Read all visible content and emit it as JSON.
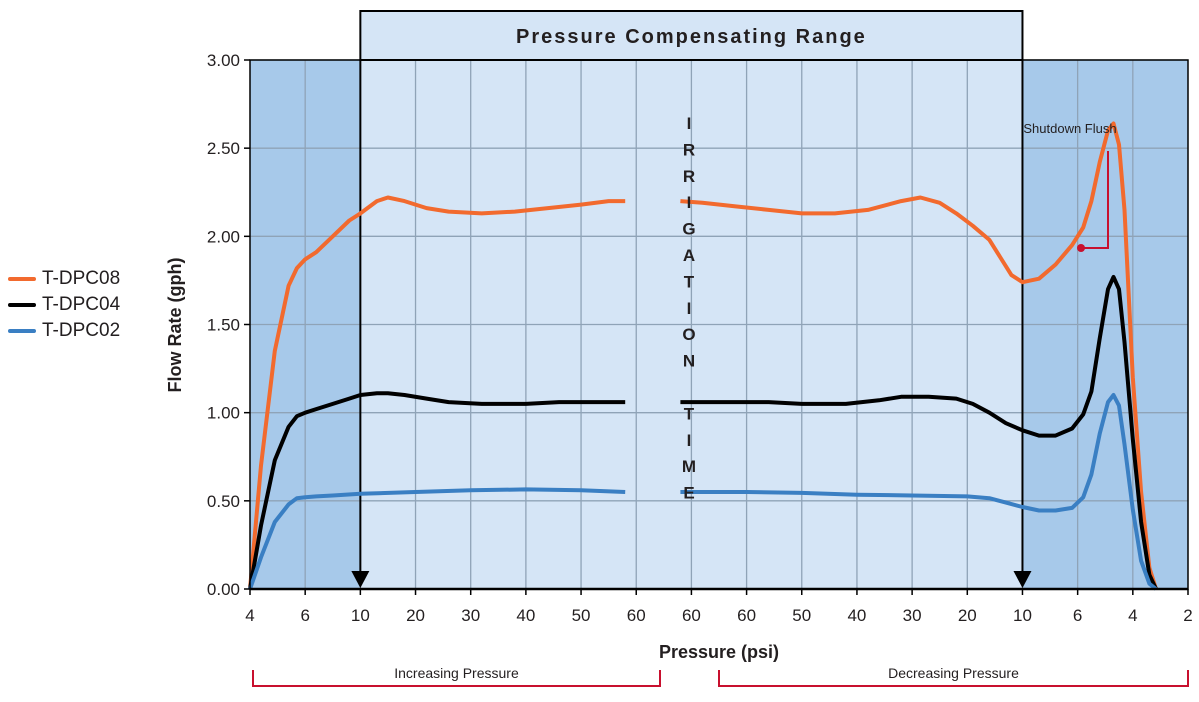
{
  "chart_data": {
    "type": "line",
    "title": "",
    "xlabel": "Pressure (psi)",
    "ylabel": "Flow Rate (gph)",
    "ylim": [
      0,
      3
    ],
    "y_ticks": [
      "0.00",
      "0.50",
      "1.00",
      "1.50",
      "2.00",
      "2.50",
      "3.00"
    ],
    "x_ticks": [
      "4",
      "6",
      "10",
      "20",
      "30",
      "40",
      "50",
      "60",
      "60",
      "60",
      "50",
      "40",
      "30",
      "20",
      "10",
      "6",
      "4",
      "2"
    ],
    "grid": true,
    "legend_position": "left",
    "band_label": "Pressure Compensating Range",
    "center_label": [
      "I",
      "R",
      "R",
      "I",
      "G",
      "A",
      "T",
      "I",
      "O",
      "N",
      "",
      "T",
      "I",
      "M",
      "E"
    ],
    "annotation": "Shutdown Flush",
    "bottom_labels": [
      "Increasing Pressure",
      "Decreasing Pressure"
    ],
    "colors": {
      "outer_band": "#a7c9ea",
      "inner_band": "#d5e5f6",
      "grid": "#8fa3b7",
      "annotation": "#c8102e"
    },
    "series": [
      {
        "name": "T-DPC08",
        "color": "#f26a2e",
        "segments": [
          [
            [
              0,
              0
            ],
            [
              0.2,
              0.7
            ],
            [
              0.45,
              1.35
            ],
            [
              0.7,
              1.72
            ],
            [
              0.85,
              1.82
            ],
            [
              1,
              1.87
            ],
            [
              1.2,
              1.91
            ],
            [
              1.5,
              2.0
            ],
            [
              1.8,
              2.09
            ],
            [
              2,
              2.13
            ],
            [
              2.3,
              2.2
            ],
            [
              2.5,
              2.22
            ],
            [
              2.8,
              2.2
            ],
            [
              3.2,
              2.16
            ],
            [
              3.6,
              2.14
            ],
            [
              4.2,
              2.13
            ],
            [
              4.8,
              2.14
            ],
            [
              5.4,
              2.16
            ],
            [
              6,
              2.18
            ],
            [
              6.5,
              2.2
            ],
            [
              6.8,
              2.2
            ]
          ],
          [
            [
              7.8,
              2.2
            ],
            [
              8.2,
              2.19
            ],
            [
              8.8,
              2.17
            ],
            [
              9.4,
              2.15
            ],
            [
              10,
              2.13
            ],
            [
              10.6,
              2.13
            ],
            [
              11.2,
              2.15
            ],
            [
              11.8,
              2.2
            ],
            [
              12.15,
              2.22
            ],
            [
              12.5,
              2.19
            ],
            [
              12.8,
              2.13
            ],
            [
              13.1,
              2.06
            ],
            [
              13.4,
              1.98
            ],
            [
              13.6,
              1.88
            ],
            [
              13.8,
              1.78
            ],
            [
              14,
              1.74
            ],
            [
              14.3,
              1.76
            ],
            [
              14.6,
              1.84
            ],
            [
              14.9,
              1.95
            ],
            [
              15.1,
              2.05
            ],
            [
              15.25,
              2.2
            ],
            [
              15.4,
              2.42
            ],
            [
              15.55,
              2.6
            ],
            [
              15.65,
              2.64
            ],
            [
              15.75,
              2.52
            ],
            [
              15.85,
              2.15
            ],
            [
              16,
              1.2
            ],
            [
              16.15,
              0.55
            ],
            [
              16.3,
              0.12
            ],
            [
              16.42,
              0
            ]
          ]
        ]
      },
      {
        "name": "T-DPC04",
        "color": "#000000",
        "segments": [
          [
            [
              0,
              0
            ],
            [
              0.2,
              0.36
            ],
            [
              0.45,
              0.73
            ],
            [
              0.7,
              0.92
            ],
            [
              0.85,
              0.98
            ],
            [
              1,
              1.0
            ],
            [
              1.2,
              1.02
            ],
            [
              1.5,
              1.05
            ],
            [
              1.8,
              1.08
            ],
            [
              2,
              1.1
            ],
            [
              2.3,
              1.11
            ],
            [
              2.5,
              1.11
            ],
            [
              2.8,
              1.1
            ],
            [
              3.2,
              1.08
            ],
            [
              3.6,
              1.06
            ],
            [
              4.2,
              1.05
            ],
            [
              5,
              1.05
            ],
            [
              5.6,
              1.06
            ],
            [
              6.2,
              1.06
            ],
            [
              6.8,
              1.06
            ]
          ],
          [
            [
              7.8,
              1.06
            ],
            [
              8.6,
              1.06
            ],
            [
              9.4,
              1.06
            ],
            [
              10,
              1.05
            ],
            [
              10.8,
              1.05
            ],
            [
              11.4,
              1.07
            ],
            [
              11.8,
              1.09
            ],
            [
              12.3,
              1.09
            ],
            [
              12.8,
              1.08
            ],
            [
              13.1,
              1.05
            ],
            [
              13.4,
              1.0
            ],
            [
              13.7,
              0.94
            ],
            [
              14,
              0.9
            ],
            [
              14.3,
              0.87
            ],
            [
              14.6,
              0.87
            ],
            [
              14.9,
              0.91
            ],
            [
              15.1,
              0.99
            ],
            [
              15.25,
              1.12
            ],
            [
              15.4,
              1.42
            ],
            [
              15.55,
              1.7
            ],
            [
              15.65,
              1.77
            ],
            [
              15.75,
              1.7
            ],
            [
              15.85,
              1.4
            ],
            [
              16,
              0.85
            ],
            [
              16.15,
              0.38
            ],
            [
              16.3,
              0.08
            ],
            [
              16.42,
              0
            ]
          ]
        ]
      },
      {
        "name": "T-DPC02",
        "color": "#3a7fc3",
        "segments": [
          [
            [
              0,
              0
            ],
            [
              0.2,
              0.18
            ],
            [
              0.45,
              0.38
            ],
            [
              0.7,
              0.48
            ],
            [
              0.85,
              0.515
            ],
            [
              1,
              0.52
            ],
            [
              1.2,
              0.525
            ],
            [
              1.5,
              0.53
            ],
            [
              2,
              0.54
            ],
            [
              3,
              0.55
            ],
            [
              4,
              0.56
            ],
            [
              5,
              0.565
            ],
            [
              6,
              0.56
            ],
            [
              6.8,
              0.55
            ]
          ],
          [
            [
              7.8,
              0.55
            ],
            [
              9,
              0.55
            ],
            [
              10,
              0.545
            ],
            [
              11,
              0.535
            ],
            [
              12,
              0.53
            ],
            [
              13,
              0.525
            ],
            [
              13.4,
              0.515
            ],
            [
              13.7,
              0.49
            ],
            [
              14,
              0.465
            ],
            [
              14.3,
              0.445
            ],
            [
              14.6,
              0.445
            ],
            [
              14.9,
              0.46
            ],
            [
              15.1,
              0.52
            ],
            [
              15.25,
              0.65
            ],
            [
              15.4,
              0.88
            ],
            [
              15.55,
              1.06
            ],
            [
              15.65,
              1.1
            ],
            [
              15.75,
              1.04
            ],
            [
              15.85,
              0.82
            ],
            [
              16,
              0.45
            ],
            [
              16.15,
              0.16
            ],
            [
              16.3,
              0.03
            ],
            [
              16.42,
              0
            ]
          ]
        ]
      }
    ]
  }
}
